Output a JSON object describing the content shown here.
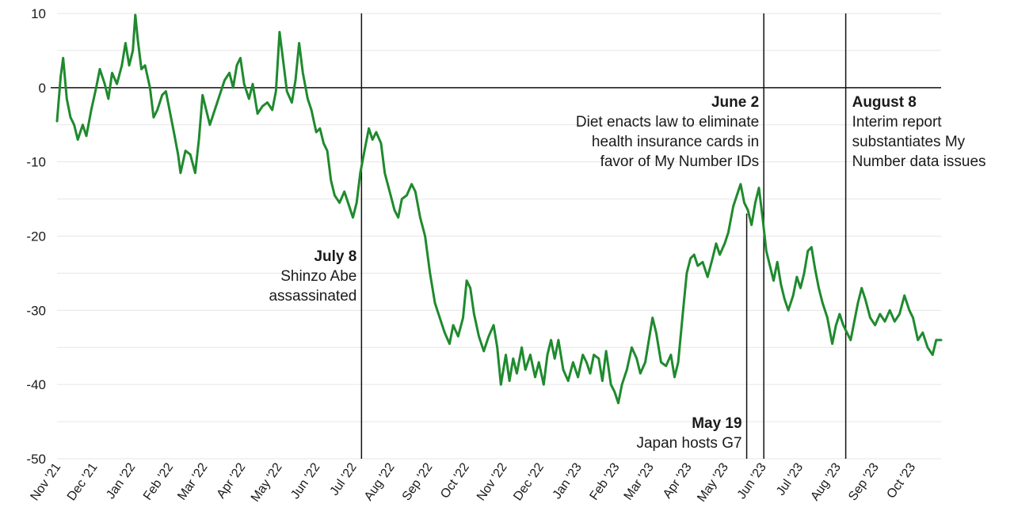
{
  "chart_data": {
    "type": "line",
    "title": "",
    "xlabel": "",
    "ylabel": "",
    "ylim": [
      -50,
      10
    ],
    "yticks": [
      10,
      0,
      -10,
      -20,
      -30,
      -40,
      -50
    ],
    "x_tick_labels": [
      "Nov '21",
      "Dec '21",
      "Jan '22",
      "Feb '22",
      "Mar '22",
      "Apr '22",
      "May '22",
      "Jun '22",
      "Jul '22",
      "Aug '22",
      "Sep '22",
      "Oct '22",
      "Nov '22",
      "Dec '22",
      "Jan '23",
      "Feb '23",
      "Mar '23",
      "Apr '23",
      "May '23",
      "Jun '23",
      "Jul '23",
      "Aug '23",
      "Sep '23",
      "Oct '23"
    ],
    "x_range": [
      "2021-11-01",
      "2023-10-25"
    ],
    "grid": "horizontal",
    "line_color": "#1f8a2e",
    "series": [
      {
        "points": [
          [
            "2021-11-01",
            -4.5
          ],
          [
            "2021-11-04",
            1.5
          ],
          [
            "2021-11-06",
            4.0
          ],
          [
            "2021-11-09",
            -1.5
          ],
          [
            "2021-11-12",
            -4.0
          ],
          [
            "2021-11-15",
            -5.0
          ],
          [
            "2021-11-18",
            -7.0
          ],
          [
            "2021-11-22",
            -5.0
          ],
          [
            "2021-11-25",
            -6.5
          ],
          [
            "2021-11-29",
            -3.0
          ],
          [
            "2021-12-03",
            0.0
          ],
          [
            "2021-12-06",
            2.5
          ],
          [
            "2021-12-10",
            0.5
          ],
          [
            "2021-12-13",
            -1.5
          ],
          [
            "2021-12-16",
            2.0
          ],
          [
            "2021-12-20",
            0.5
          ],
          [
            "2021-12-24",
            3.0
          ],
          [
            "2021-12-27",
            6.0
          ],
          [
            "2021-12-30",
            3.0
          ],
          [
            "2022-01-02",
            5.0
          ],
          [
            "2022-01-04",
            9.8
          ],
          [
            "2022-01-06",
            6.5
          ],
          [
            "2022-01-09",
            2.5
          ],
          [
            "2022-01-12",
            3.0
          ],
          [
            "2022-01-16",
            0.0
          ],
          [
            "2022-01-19",
            -4.0
          ],
          [
            "2022-01-22",
            -3.0
          ],
          [
            "2022-01-26",
            -1.0
          ],
          [
            "2022-01-29",
            -0.5
          ],
          [
            "2022-02-01",
            -3.0
          ],
          [
            "2022-02-04",
            -5.5
          ],
          [
            "2022-02-08",
            -9.0
          ],
          [
            "2022-02-10",
            -11.5
          ],
          [
            "2022-02-14",
            -8.5
          ],
          [
            "2022-02-18",
            -9.0
          ],
          [
            "2022-02-22",
            -11.5
          ],
          [
            "2022-02-25",
            -7.0
          ],
          [
            "2022-02-28",
            -1.0
          ],
          [
            "2022-03-03",
            -3.0
          ],
          [
            "2022-03-06",
            -5.0
          ],
          [
            "2022-03-10",
            -3.0
          ],
          [
            "2022-03-14",
            -1.0
          ],
          [
            "2022-03-18",
            1.0
          ],
          [
            "2022-03-22",
            2.0
          ],
          [
            "2022-03-25",
            0.0
          ],
          [
            "2022-03-28",
            3.0
          ],
          [
            "2022-03-31",
            4.0
          ],
          [
            "2022-04-03",
            0.5
          ],
          [
            "2022-04-07",
            -1.5
          ],
          [
            "2022-04-10",
            0.5
          ],
          [
            "2022-04-14",
            -3.5
          ],
          [
            "2022-04-18",
            -2.5
          ],
          [
            "2022-04-22",
            -2.0
          ],
          [
            "2022-04-26",
            -3.0
          ],
          [
            "2022-04-29",
            -0.5
          ],
          [
            "2022-05-02",
            7.5
          ],
          [
            "2022-05-05",
            3.5
          ],
          [
            "2022-05-08",
            -0.5
          ],
          [
            "2022-05-12",
            -2.0
          ],
          [
            "2022-05-15",
            1.0
          ],
          [
            "2022-05-18",
            6.0
          ],
          [
            "2022-05-21",
            2.0
          ],
          [
            "2022-05-25",
            -1.5
          ],
          [
            "2022-05-28",
            -3.0
          ],
          [
            "2022-06-01",
            -6.0
          ],
          [
            "2022-06-04",
            -5.5
          ],
          [
            "2022-06-07",
            -7.5
          ],
          [
            "2022-06-10",
            -8.5
          ],
          [
            "2022-06-13",
            -12.5
          ],
          [
            "2022-06-16",
            -14.5
          ],
          [
            "2022-06-20",
            -15.5
          ],
          [
            "2022-06-24",
            -14.0
          ],
          [
            "2022-06-28",
            -16.0
          ],
          [
            "2022-07-01",
            -17.5
          ],
          [
            "2022-07-04",
            -15.5
          ],
          [
            "2022-07-07",
            -11.5
          ],
          [
            "2022-07-11",
            -8.0
          ],
          [
            "2022-07-14",
            -5.5
          ],
          [
            "2022-07-17",
            -7.0
          ],
          [
            "2022-07-20",
            -6.0
          ],
          [
            "2022-07-24",
            -7.5
          ],
          [
            "2022-07-27",
            -11.5
          ],
          [
            "2022-07-31",
            -14.0
          ],
          [
            "2022-08-04",
            -16.5
          ],
          [
            "2022-08-07",
            -17.5
          ],
          [
            "2022-08-10",
            -15.0
          ],
          [
            "2022-08-14",
            -14.5
          ],
          [
            "2022-08-18",
            -13.0
          ],
          [
            "2022-08-21",
            -14.0
          ],
          [
            "2022-08-25",
            -17.5
          ],
          [
            "2022-08-29",
            -20.0
          ],
          [
            "2022-09-02",
            -25.0
          ],
          [
            "2022-09-06",
            -29.0
          ],
          [
            "2022-09-10",
            -31.0
          ],
          [
            "2022-09-14",
            -33.0
          ],
          [
            "2022-09-18",
            -34.5
          ],
          [
            "2022-09-21",
            -32.0
          ],
          [
            "2022-09-25",
            -33.5
          ],
          [
            "2022-09-29",
            -31.0
          ],
          [
            "2022-10-02",
            -26.0
          ],
          [
            "2022-10-05",
            -27.0
          ],
          [
            "2022-10-08",
            -30.5
          ],
          [
            "2022-10-12",
            -33.5
          ],
          [
            "2022-10-16",
            -35.5
          ],
          [
            "2022-10-20",
            -33.5
          ],
          [
            "2022-10-24",
            -32.0
          ],
          [
            "2022-10-27",
            -35.0
          ],
          [
            "2022-10-30",
            -40.0
          ],
          [
            "2022-11-03",
            -36.0
          ],
          [
            "2022-11-06",
            -39.5
          ],
          [
            "2022-11-09",
            -36.5
          ],
          [
            "2022-11-12",
            -38.5
          ],
          [
            "2022-11-16",
            -35.0
          ],
          [
            "2022-11-19",
            -38.0
          ],
          [
            "2022-11-23",
            -36.0
          ],
          [
            "2022-11-27",
            -39.0
          ],
          [
            "2022-11-30",
            -37.0
          ],
          [
            "2022-12-04",
            -40.0
          ],
          [
            "2022-12-07",
            -36.0
          ],
          [
            "2022-12-10",
            -34.0
          ],
          [
            "2022-12-13",
            -36.5
          ],
          [
            "2022-12-16",
            -34.0
          ],
          [
            "2022-12-20",
            -38.0
          ],
          [
            "2022-12-24",
            -39.5
          ],
          [
            "2022-12-28",
            -37.0
          ],
          [
            "2023-01-01",
            -39.0
          ],
          [
            "2023-01-05",
            -36.0
          ],
          [
            "2023-01-08",
            -37.0
          ],
          [
            "2023-01-11",
            -38.5
          ],
          [
            "2023-01-14",
            -36.0
          ],
          [
            "2023-01-18",
            -36.5
          ],
          [
            "2023-01-21",
            -39.5
          ],
          [
            "2023-01-24",
            -35.5
          ],
          [
            "2023-01-28",
            -40.0
          ],
          [
            "2023-01-31",
            -41.0
          ],
          [
            "2023-02-03",
            -42.5
          ],
          [
            "2023-02-06",
            -40.0
          ],
          [
            "2023-02-10",
            -38.0
          ],
          [
            "2023-02-14",
            -35.0
          ],
          [
            "2023-02-18",
            -36.5
          ],
          [
            "2023-02-21",
            -38.5
          ],
          [
            "2023-02-25",
            -37.0
          ],
          [
            "2023-02-28",
            -34.0
          ],
          [
            "2023-03-03",
            -31.0
          ],
          [
            "2023-03-06",
            -33.0
          ],
          [
            "2023-03-10",
            -37.0
          ],
          [
            "2023-03-14",
            -37.5
          ],
          [
            "2023-03-18",
            -36.0
          ],
          [
            "2023-03-21",
            -39.0
          ],
          [
            "2023-03-24",
            -37.0
          ],
          [
            "2023-03-28",
            -30.0
          ],
          [
            "2023-03-31",
            -25.0
          ],
          [
            "2023-04-03",
            -23.0
          ],
          [
            "2023-04-06",
            -22.5
          ],
          [
            "2023-04-09",
            -24.0
          ],
          [
            "2023-04-13",
            -23.5
          ],
          [
            "2023-04-17",
            -25.5
          ],
          [
            "2023-04-21",
            -23.0
          ],
          [
            "2023-04-24",
            -21.0
          ],
          [
            "2023-04-27",
            -22.5
          ],
          [
            "2023-05-01",
            -21.0
          ],
          [
            "2023-05-04",
            -19.5
          ],
          [
            "2023-05-08",
            -16.0
          ],
          [
            "2023-05-11",
            -14.5
          ],
          [
            "2023-05-14",
            -13.0
          ],
          [
            "2023-05-17",
            -15.5
          ],
          [
            "2023-05-20",
            -16.5
          ],
          [
            "2023-05-23",
            -18.5
          ],
          [
            "2023-05-26",
            -15.5
          ],
          [
            "2023-05-29",
            -13.5
          ],
          [
            "2023-06-01",
            -17.5
          ],
          [
            "2023-06-04",
            -22.0
          ],
          [
            "2023-06-07",
            -24.0
          ],
          [
            "2023-06-10",
            -26.0
          ],
          [
            "2023-06-13",
            -23.5
          ],
          [
            "2023-06-16",
            -26.5
          ],
          [
            "2023-06-19",
            -28.5
          ],
          [
            "2023-06-22",
            -30.0
          ],
          [
            "2023-06-26",
            -28.0
          ],
          [
            "2023-06-29",
            -25.5
          ],
          [
            "2023-07-02",
            -27.0
          ],
          [
            "2023-07-05",
            -25.0
          ],
          [
            "2023-07-08",
            -22.0
          ],
          [
            "2023-07-11",
            -21.5
          ],
          [
            "2023-07-14",
            -24.5
          ],
          [
            "2023-07-17",
            -27.0
          ],
          [
            "2023-07-20",
            -29.0
          ],
          [
            "2023-07-24",
            -31.0
          ],
          [
            "2023-07-28",
            -34.5
          ],
          [
            "2023-07-31",
            -32.0
          ],
          [
            "2023-08-03",
            -30.5
          ],
          [
            "2023-08-06",
            -32.0
          ],
          [
            "2023-08-09",
            -33.0
          ],
          [
            "2023-08-12",
            -34.0
          ],
          [
            "2023-08-15",
            -31.5
          ],
          [
            "2023-08-18",
            -29.0
          ],
          [
            "2023-08-21",
            -27.0
          ],
          [
            "2023-08-24",
            -28.5
          ],
          [
            "2023-08-28",
            -31.0
          ],
          [
            "2023-09-01",
            -32.0
          ],
          [
            "2023-09-05",
            -30.5
          ],
          [
            "2023-09-09",
            -31.5
          ],
          [
            "2023-09-13",
            -30.0
          ],
          [
            "2023-09-17",
            -31.5
          ],
          [
            "2023-09-21",
            -30.5
          ],
          [
            "2023-09-25",
            -28.0
          ],
          [
            "2023-09-29",
            -30.0
          ],
          [
            "2023-10-02",
            -31.0
          ],
          [
            "2023-10-06",
            -34.0
          ],
          [
            "2023-10-10",
            -33.0
          ],
          [
            "2023-10-14",
            -35.0
          ],
          [
            "2023-10-18",
            -36.0
          ],
          [
            "2023-10-21",
            -34.0
          ],
          [
            "2023-10-25",
            -34.0
          ]
        ]
      }
    ],
    "events": [
      {
        "date": "2022-07-08",
        "title": "July 8",
        "lines": [
          "Shinzo Abe",
          "assassinated"
        ],
        "placement": "left-middle"
      },
      {
        "date": "2023-05-19",
        "title": "May 19",
        "lines": [
          "Japan hosts G7"
        ],
        "placement": "left-bottom"
      },
      {
        "date": "2023-06-02",
        "title": "June 2",
        "lines": [
          "Diet enacts law to eliminate",
          "health insurance cards in",
          "favor of My Number IDs"
        ],
        "placement": "left-top"
      },
      {
        "date": "2023-08-08",
        "title": "August 8",
        "lines": [
          "Interim report",
          "substantiates My",
          "Number data issues"
        ],
        "placement": "right-top"
      }
    ]
  }
}
